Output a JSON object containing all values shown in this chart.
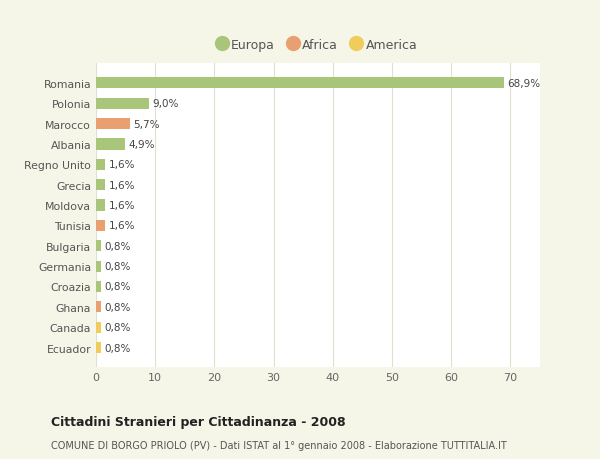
{
  "categories": [
    "Romania",
    "Polonia",
    "Marocco",
    "Albania",
    "Regno Unito",
    "Grecia",
    "Moldova",
    "Tunisia",
    "Bulgaria",
    "Germania",
    "Croazia",
    "Ghana",
    "Canada",
    "Ecuador"
  ],
  "values": [
    68.9,
    9.0,
    5.7,
    4.9,
    1.6,
    1.6,
    1.6,
    1.6,
    0.8,
    0.8,
    0.8,
    0.8,
    0.8,
    0.8
  ],
  "continents": [
    "Europa",
    "Europa",
    "Africa",
    "Europa",
    "Europa",
    "Europa",
    "Europa",
    "Africa",
    "Europa",
    "Europa",
    "Europa",
    "Africa",
    "America",
    "America"
  ],
  "labels": [
    "68,9%",
    "9,0%",
    "5,7%",
    "4,9%",
    "1,6%",
    "1,6%",
    "1,6%",
    "1,6%",
    "0,8%",
    "0,8%",
    "0,8%",
    "0,8%",
    "0,8%",
    "0,8%"
  ],
  "colors": {
    "Europa": "#a8c57a",
    "Africa": "#e8a070",
    "America": "#f0cc5a"
  },
  "xlim": [
    0,
    75
  ],
  "xticks": [
    0,
    10,
    20,
    30,
    40,
    50,
    60,
    70
  ],
  "title": "Cittadini Stranieri per Cittadinanza - 2008",
  "subtitle": "COMUNE DI BORGO PRIOLO (PV) - Dati ISTAT al 1° gennaio 2008 - Elaborazione TUTTITALIA.IT",
  "bg_color": "#f5f5e8",
  "plot_bg_color": "#ffffff",
  "grid_color": "#e0e0d0"
}
